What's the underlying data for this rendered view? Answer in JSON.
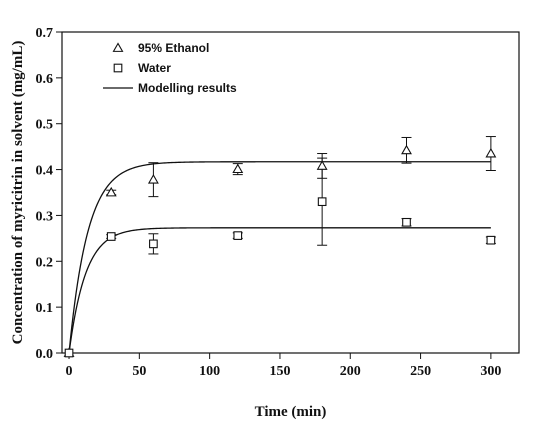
{
  "chart_data": {
    "type": "scatter",
    "title": "",
    "xlabel": "Time (min)",
    "ylabel": "Concentration of myricitrin in solvent (mg/mL)",
    "xlim": [
      -5,
      320
    ],
    "ylim": [
      0.0,
      0.7
    ],
    "xticks": [
      0,
      50,
      100,
      150,
      200,
      250,
      300
    ],
    "yticks": [
      0.0,
      0.1,
      0.2,
      0.3,
      0.4,
      0.5,
      0.6,
      0.7
    ],
    "xtick_labels": [
      "0",
      "50",
      "100",
      "150",
      "200",
      "250",
      "300"
    ],
    "ytick_labels": [
      "0.0",
      "0.1",
      "0.2",
      "0.3",
      "0.4",
      "0.5",
      "0.6",
      "0.7"
    ],
    "grid": false,
    "legend_position": "top-left",
    "series": [
      {
        "name": "95% Ethanol",
        "marker": "triangle",
        "x": [
          0,
          30,
          60,
          120,
          180,
          240,
          300
        ],
        "y": [
          0.0,
          0.35,
          0.378,
          0.401,
          0.408,
          0.442,
          0.435
        ],
        "error": [
          0.0,
          0.005,
          0.037,
          0.012,
          0.027,
          0.028,
          0.037
        ]
      },
      {
        "name": "Water",
        "marker": "square",
        "x": [
          0,
          30,
          60,
          120,
          180,
          240,
          300
        ],
        "y": [
          0.0,
          0.254,
          0.238,
          0.256,
          0.33,
          0.285,
          0.246
        ],
        "error": [
          0.0,
          0.004,
          0.022,
          0.006,
          0.095,
          0.008,
          0.007
        ]
      },
      {
        "name": "Modelling results",
        "type": "line",
        "curves": [
          {
            "plateau": 0.417,
            "rate": 0.075
          },
          {
            "plateau": 0.273,
            "rate": 0.085
          }
        ]
      }
    ]
  }
}
